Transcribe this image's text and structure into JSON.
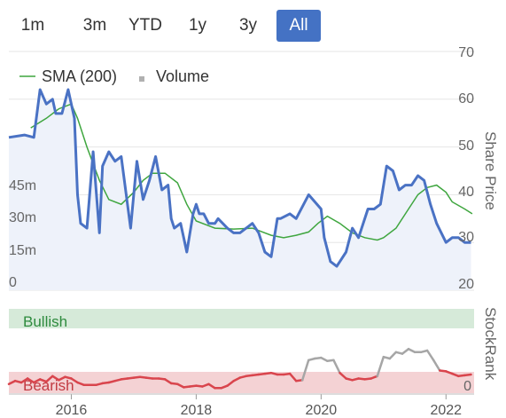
{
  "range_buttons": [
    {
      "label": "1m",
      "active": false
    },
    {
      "label": "3m",
      "active": false
    },
    {
      "label": "YTD",
      "active": false
    },
    {
      "label": "1y",
      "active": false
    },
    {
      "label": "3y",
      "active": false
    },
    {
      "label": "All",
      "active": true
    }
  ],
  "colors": {
    "price": "#4a72c4",
    "sma": "#3fa63f",
    "volume": "#c8c8c8",
    "bullish_band": "#d6ead9",
    "bearish_band": "#f4d2d4",
    "rank_bull": "#a6a6a6",
    "rank_bear": "#d9454d",
    "accent": "#4472c4"
  },
  "chart_data": [
    {
      "type": "line",
      "legend": [
        "SMA (200)",
        "Volume"
      ],
      "ylabel": "Share Price",
      "ylim": [
        20,
        70
      ],
      "y_ticks": [
        "70",
        "60",
        "50",
        "40",
        "30",
        "20"
      ],
      "volume_ticks": [
        "45m",
        "30m",
        "15m",
        "0"
      ],
      "volume_lim": [
        0,
        60
      ],
      "xlim": [
        2015.0,
        2022.45
      ],
      "x_ticks": [
        "2016",
        "2018",
        "2020",
        "2022"
      ],
      "x_tick_values": [
        2016,
        2018,
        2020,
        2022
      ],
      "series": [
        {
          "name": "Share Price",
          "x": [
            2015.0,
            2015.25,
            2015.4,
            2015.5,
            2015.6,
            2015.7,
            2015.75,
            2015.85,
            2015.95,
            2016.05,
            2016.1,
            2016.15,
            2016.25,
            2016.35,
            2016.45,
            2016.5,
            2016.6,
            2016.7,
            2016.8,
            2016.95,
            2017.0,
            2017.05,
            2017.15,
            2017.25,
            2017.35,
            2017.45,
            2017.55,
            2017.6,
            2017.65,
            2017.75,
            2017.8,
            2017.85,
            2017.95,
            2018.0,
            2018.05,
            2018.12,
            2018.2,
            2018.3,
            2018.35,
            2018.5,
            2018.6,
            2018.7,
            2018.8,
            2018.9,
            2019.0,
            2019.1,
            2019.2,
            2019.3,
            2019.35,
            2019.5,
            2019.6,
            2019.8,
            2020.0,
            2020.05,
            2020.15,
            2020.25,
            2020.4,
            2020.5,
            2020.6,
            2020.75,
            2020.85,
            2020.95,
            2021.05,
            2021.15,
            2021.25,
            2021.35,
            2021.45,
            2021.55,
            2021.65,
            2021.75,
            2021.85,
            2022.0,
            2022.1,
            2022.2,
            2022.3,
            2022.4
          ],
          "y": [
            52,
            52.5,
            52,
            62,
            59,
            60,
            57,
            57,
            62,
            56,
            40,
            34,
            33,
            49,
            32,
            46,
            49,
            47,
            48,
            33,
            40,
            47,
            39,
            43,
            48,
            41,
            42,
            35,
            33,
            34,
            31,
            28,
            36,
            38,
            36,
            36,
            34,
            34,
            35,
            33,
            32,
            32,
            33,
            34,
            32,
            28,
            27,
            35,
            35,
            36,
            35,
            40,
            37,
            31,
            26,
            25,
            28,
            33,
            31,
            37,
            37,
            38,
            46,
            45,
            41,
            42,
            42,
            44,
            43,
            38,
            34,
            30,
            31,
            31,
            30,
            30
          ]
        },
        {
          "name": "SMA (200)",
          "x": [
            2015.35,
            2015.6,
            2015.8,
            2016.0,
            2016.1,
            2016.25,
            2016.45,
            2016.6,
            2016.8,
            2017.0,
            2017.15,
            2017.3,
            2017.5,
            2017.7,
            2017.85,
            2018.0,
            2018.3,
            2018.6,
            2018.9,
            2019.2,
            2019.4,
            2019.6,
            2019.8,
            2019.95,
            2020.1,
            2020.3,
            2020.5,
            2020.7,
            2020.9,
            2021.0,
            2021.2,
            2021.4,
            2021.55,
            2021.7,
            2021.85,
            2022.0,
            2022.1,
            2022.3,
            2022.42
          ],
          "y": [
            54,
            56,
            58,
            59,
            56,
            50,
            43,
            39,
            38,
            40.5,
            43,
            44.5,
            44.5,
            42.5,
            38,
            34.5,
            33,
            32.8,
            33,
            31.5,
            31,
            31.5,
            32.2,
            34,
            35.5,
            34,
            32,
            31,
            30.5,
            31,
            33,
            37,
            40,
            41.5,
            42,
            40.5,
            38.5,
            37,
            36
          ]
        }
      ],
      "volume": [
        {
          "x": 2016.6,
          "v": 3
        },
        {
          "x": 2017.55,
          "v": 2
        },
        {
          "x": 2017.75,
          "v": 2
        },
        {
          "x": 2017.85,
          "v": 2
        },
        {
          "x": 2018.45,
          "v": 2
        },
        {
          "x": 2018.6,
          "v": 3
        },
        {
          "x": 2018.7,
          "v": 2
        },
        {
          "x": 2019.3,
          "v": 7
        },
        {
          "x": 2019.4,
          "v": 3
        },
        {
          "x": 2019.55,
          "v": 3
        },
        {
          "x": 2019.65,
          "v": 2
        },
        {
          "x": 2019.8,
          "v": 2
        },
        {
          "x": 2019.95,
          "v": 3
        },
        {
          "x": 2020.2,
          "v": 2
        },
        {
          "x": 2020.6,
          "v": 2
        },
        {
          "x": 2020.8,
          "v": 2
        },
        {
          "x": 2021.1,
          "v": 2
        },
        {
          "x": 2021.3,
          "v": 32
        },
        {
          "x": 2021.45,
          "v": 2
        },
        {
          "x": 2021.6,
          "v": 2
        },
        {
          "x": 2021.85,
          "v": 2
        }
      ]
    },
    {
      "type": "line",
      "ylabel": "StockRank",
      "ylim": [
        0,
        100
      ],
      "y_ticks": [
        "0"
      ],
      "bands": [
        {
          "label": "Bullish",
          "from": 70,
          "to": 100
        },
        {
          "label": "Bearish",
          "from": 0,
          "to": 12
        }
      ],
      "series": [
        {
          "name": "StockRank",
          "x": [
            2015.0,
            2015.1,
            2015.2,
            2015.3,
            2015.4,
            2015.5,
            2015.6,
            2015.7,
            2015.8,
            2015.9,
            2016.0,
            2016.1,
            2016.2,
            2016.3,
            2016.4,
            2016.5,
            2016.6,
            2016.7,
            2016.8,
            2016.9,
            2017.0,
            2017.1,
            2017.2,
            2017.3,
            2017.4,
            2017.5,
            2017.6,
            2017.7,
            2017.8,
            2017.9,
            2018.0,
            2018.1,
            2018.2,
            2018.3,
            2018.4,
            2018.5,
            2018.6,
            2018.7,
            2018.8,
            2018.9,
            2019.0,
            2019.1,
            2019.2,
            2019.3,
            2019.4,
            2019.5,
            2019.6,
            2019.7,
            2019.8,
            2019.9,
            2020.0,
            2020.1,
            2020.2,
            2020.3,
            2020.4,
            2020.5,
            2020.6,
            2020.7,
            2020.8,
            2020.9,
            2021.0,
            2021.1,
            2021.2,
            2021.3,
            2021.4,
            2021.5,
            2021.6,
            2021.7,
            2021.8,
            2021.9,
            2022.0,
            2022.1,
            2022.2,
            2022.3,
            2022.4
          ],
          "y": [
            8,
            12,
            10,
            15,
            10,
            14,
            11,
            18,
            13,
            17,
            15,
            10,
            7,
            7,
            7,
            9,
            10,
            12,
            14,
            15,
            16,
            17,
            16,
            15,
            15,
            14,
            9,
            8,
            4,
            5,
            6,
            5,
            8,
            3,
            3,
            6,
            12,
            16,
            18,
            19,
            20,
            21,
            22,
            20,
            20,
            21,
            12,
            13,
            38,
            40,
            41,
            37,
            38,
            22,
            15,
            13,
            15,
            14,
            15,
            18,
            42,
            40,
            48,
            46,
            52,
            48,
            48,
            50,
            38,
            25,
            24,
            21,
            18,
            19,
            20
          ]
        }
      ]
    }
  ]
}
